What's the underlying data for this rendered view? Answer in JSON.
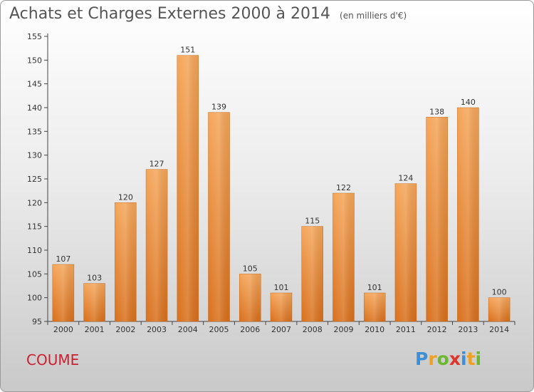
{
  "header": {
    "title": "Achats et Charges Externes 2000 à 2014",
    "subtitle": "(en milliers d'€)"
  },
  "footer": {
    "commune": "COUME",
    "logo_letters": [
      "P",
      "r",
      "o",
      "x",
      "i",
      "t",
      "i"
    ],
    "logo_colors": [
      "#3a8fd6",
      "#f0a020",
      "#6ab82e",
      "#e0352b",
      "#3a8fd6",
      "#f0a020",
      "#6ab82e"
    ]
  },
  "chart_data": {
    "type": "bar",
    "title": "Achats et Charges Externes 2000 à 2014",
    "subtitle": "(en milliers d'€)",
    "xlabel": "",
    "ylabel": "",
    "categories": [
      "2000",
      "2001",
      "2002",
      "2003",
      "2004",
      "2005",
      "2006",
      "2007",
      "2008",
      "2009",
      "2010",
      "2011",
      "2012",
      "2013",
      "2014"
    ],
    "values": [
      107,
      103,
      120,
      127,
      151,
      139,
      105,
      101,
      115,
      122,
      101,
      124,
      138,
      140,
      100
    ],
    "ylim": [
      95,
      155
    ],
    "yticks": [
      95,
      100,
      105,
      110,
      115,
      120,
      125,
      130,
      135,
      140,
      145,
      150,
      155
    ],
    "grid": false,
    "bar_color": "#f0a050"
  }
}
